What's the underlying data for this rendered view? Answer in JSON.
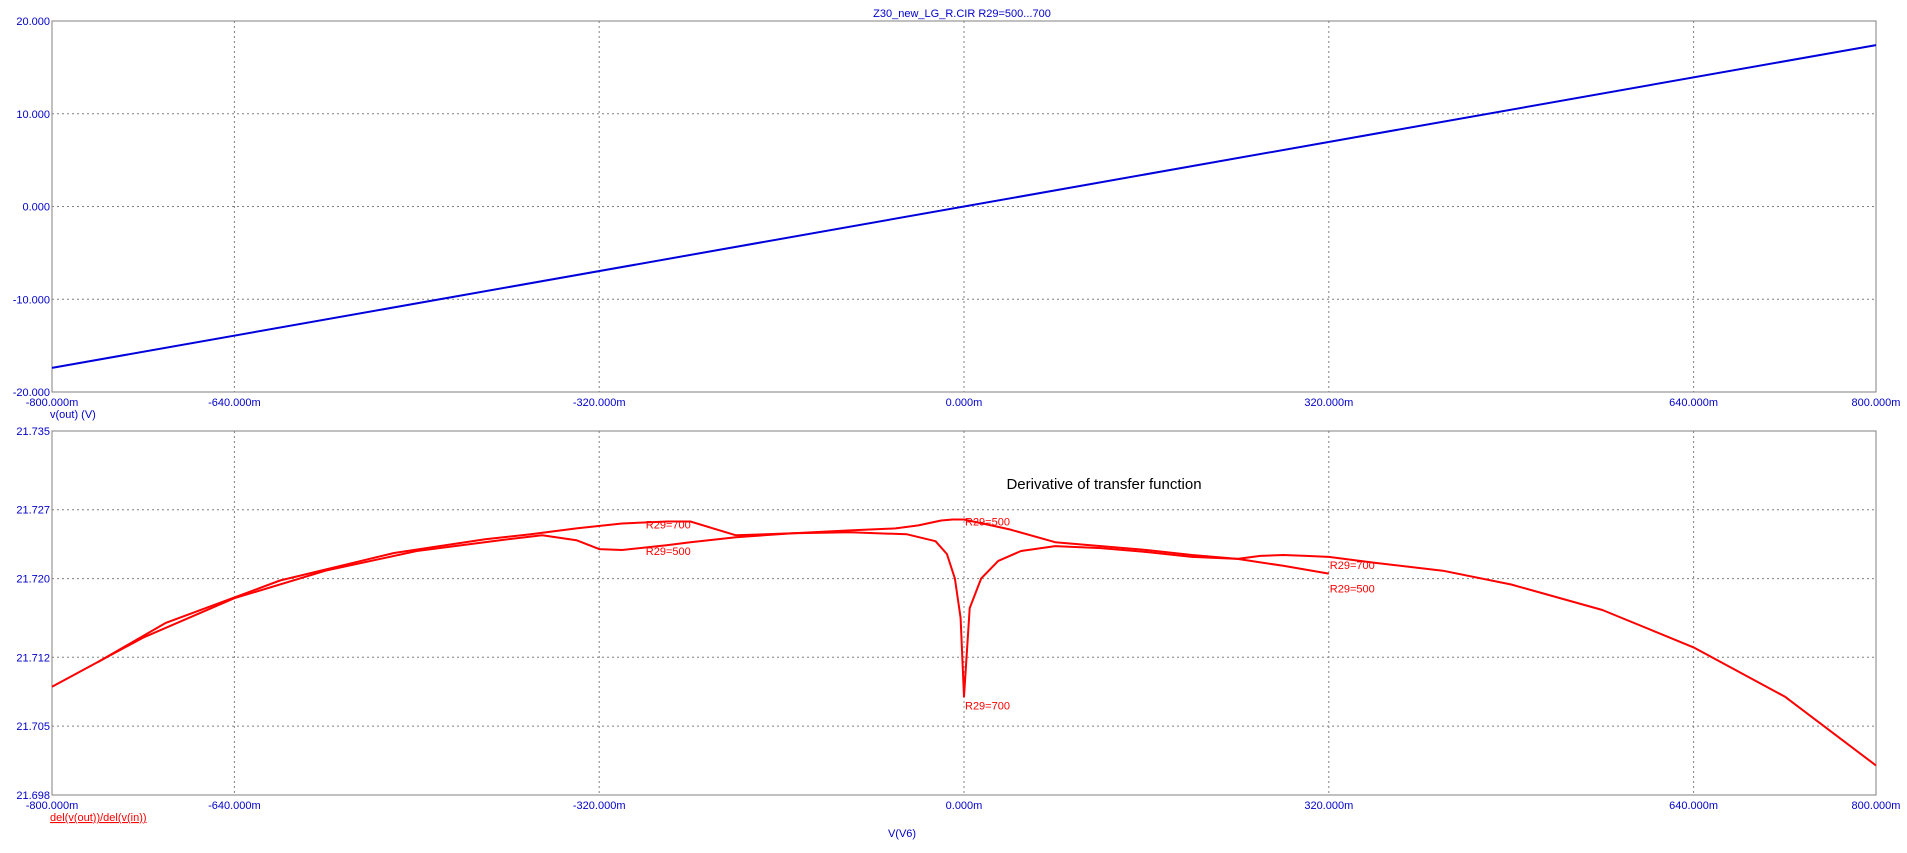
{
  "chart_title": "Z30_new_LG_R.CIR R29=500...700",
  "x_axis_label": "V(V6)",
  "annotation": "Derivative of transfer function",
  "colors": {
    "axis": "#0000CC",
    "grid": "#808080",
    "trace_top": "#0000DD",
    "trace_bottom": "#FF0000",
    "frame": "#808080"
  },
  "chart_data": [
    {
      "type": "line",
      "ylabel": "v(out) (V)",
      "xlim": [
        -800,
        800
      ],
      "ylim": [
        -20,
        20
      ],
      "x_ticks": [
        -800,
        -640,
        -320,
        0,
        320,
        640,
        800
      ],
      "x_tick_labels": [
        "-800.000m",
        "-640.000m",
        "-320.000m",
        "0.000m",
        "320.000m",
        "640.000m",
        "800.000m"
      ],
      "y_ticks": [
        20,
        10,
        0,
        -10,
        -20
      ],
      "y_tick_labels": [
        "20.000",
        "10.000",
        "0.000",
        "-10.000",
        "-20.000"
      ],
      "grid": true,
      "series": [
        {
          "x": [
            -800,
            800
          ],
          "y": [
            -17.4,
            17.4
          ]
        }
      ]
    },
    {
      "type": "line",
      "ylabel": "del(v(out))/del(v(in))",
      "xlim": [
        -800,
        800
      ],
      "ylim": [
        21.698,
        21.735
      ],
      "x_ticks": [
        -800,
        -640,
        -320,
        0,
        320,
        640,
        800
      ],
      "x_tick_labels": [
        "-800.000m",
        "-640.000m",
        "-320.000m",
        "0.000m",
        "320.000m",
        "640.000m",
        "800.000m"
      ],
      "y_ticks": [
        21.735,
        21.727,
        21.72,
        21.712,
        21.705,
        21.698
      ],
      "y_tick_labels": [
        "21.735",
        "21.727",
        "21.720",
        "21.712",
        "21.705",
        "21.698"
      ],
      "grid": true,
      "series": [
        {
          "x": [
            -800,
            -720,
            -640,
            -560,
            -480,
            -400,
            -370,
            -340,
            -320,
            -300,
            -260,
            -240,
            -200,
            -150,
            -100,
            -60,
            -40,
            -20,
            -10,
            0,
            40,
            80,
            120,
            160,
            200,
            240,
            280,
            320
          ],
          "y": [
            21.709,
            21.714,
            21.718,
            21.7208,
            21.7228,
            21.724,
            21.7244,
            21.7239,
            21.723,
            21.7229,
            21.7234,
            21.7237,
            21.7242,
            21.7246,
            21.7249,
            21.7251,
            21.7254,
            21.7259,
            21.726,
            21.726,
            21.725,
            21.7237,
            21.7233,
            21.7229,
            21.7224,
            21.722,
            21.7213,
            21.7205
          ]
        },
        {
          "x": [
            -760,
            -700,
            -600,
            -500,
            -420,
            -380,
            -340,
            -300,
            -260,
            -240,
            -220,
            -200,
            -150,
            -100,
            -50,
            -25,
            -15,
            -8,
            -3,
            0,
            5,
            15,
            30,
            50,
            80,
            120,
            160,
            200,
            240,
            260,
            280,
            300,
            320,
            360,
            420,
            480,
            560,
            640,
            720,
            800
          ],
          "y": [
            21.7115,
            21.7155,
            21.7198,
            21.7226,
            21.724,
            21.7245,
            21.7251,
            21.7256,
            21.7258,
            21.7258,
            21.7251,
            21.7244,
            21.7246,
            21.7247,
            21.7245,
            21.7238,
            21.7225,
            21.72,
            21.716,
            21.708,
            21.717,
            21.72,
            21.7218,
            21.7228,
            21.7233,
            21.7231,
            21.7227,
            21.7222,
            21.722,
            21.7223,
            21.7224,
            21.7223,
            21.7222,
            21.7216,
            21.7208,
            21.7194,
            21.7168,
            21.713,
            21.708,
            21.701
          ]
        }
      ],
      "labels": [
        {
          "text": "R29=700",
          "x": -280,
          "y": 21.7255
        },
        {
          "text": "R29=500",
          "x": -280,
          "y": 21.7228
        },
        {
          "text": "R29=500",
          "x": 0,
          "y": 21.7258
        },
        {
          "text": "R29=700",
          "x": 0,
          "y": 21.7071
        },
        {
          "text": "R29=700",
          "x": 320,
          "y": 21.7214
        },
        {
          "text": "R29=500",
          "x": 320,
          "y": 21.719
        }
      ]
    }
  ]
}
